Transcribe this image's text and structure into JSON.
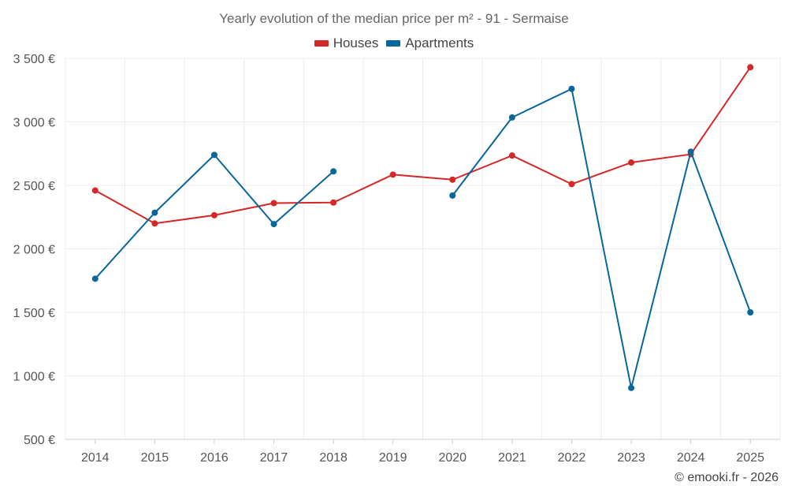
{
  "chart_data": {
    "type": "line",
    "title": "Yearly evolution of the median price per m² - 91 - Sermaise",
    "xlabel": "",
    "ylabel": "",
    "categories": [
      "2014",
      "2015",
      "2016",
      "2017",
      "2018",
      "2019",
      "2020",
      "2021",
      "2022",
      "2023",
      "2024",
      "2025"
    ],
    "ylim": [
      500,
      3500
    ],
    "yticks": [
      500,
      1000,
      1500,
      2000,
      2500,
      3000,
      3500
    ],
    "ytick_labels": [
      "500 €",
      "1 000 €",
      "1 500 €",
      "2 000 €",
      "2 500 €",
      "3 000 €",
      "3 500 €"
    ],
    "grid": true,
    "legend_position": "top-center",
    "series": [
      {
        "name": "Houses",
        "color": "#d62728",
        "values": [
          2460,
          2200,
          2265,
          2360,
          2365,
          2585,
          2545,
          2735,
          2510,
          2680,
          2745,
          3430
        ]
      },
      {
        "name": "Apartments",
        "color": "#08669a",
        "values": [
          1765,
          2285,
          2740,
          2195,
          2610,
          null,
          2420,
          3035,
          3260,
          905,
          2765,
          1500
        ]
      }
    ]
  },
  "credit": "© emooki.fr - 2026"
}
